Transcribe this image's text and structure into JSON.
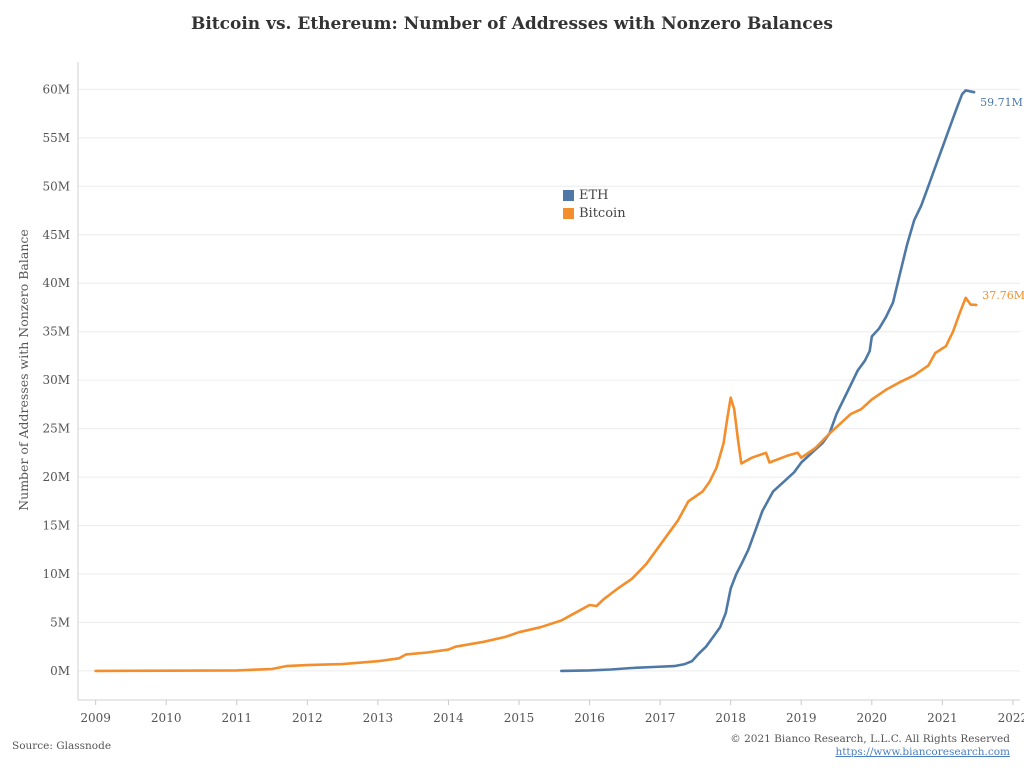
{
  "title": "Bitcoin vs. Ethereum: Number of Addresses with Nonzero Balances",
  "source": "Source: Glassnode",
  "copyright": "© 2021 Bianco Research, L.L.C. All Rights Reserved",
  "url": "https://www.biancoresearch.com",
  "colors": {
    "eth": "#4e79a7",
    "bitcoin": "#f28e2b",
    "grid": "#ececec"
  },
  "chart_data": {
    "type": "line",
    "title": "Bitcoin vs. Ethereum: Number of Addresses with Nonzero Balances",
    "xlabel": "",
    "ylabel": "Number of Addresses with Nonzero Balance",
    "xlim": [
      2008.75,
      2022.1
    ],
    "ylim": [
      -3,
      62
    ],
    "x_ticks": [
      2009,
      2010,
      2011,
      2012,
      2013,
      2014,
      2015,
      2016,
      2017,
      2018,
      2019,
      2020,
      2021,
      2022
    ],
    "x_tick_labels": [
      "2009",
      "2010",
      "2011",
      "2012",
      "2013",
      "2014",
      "2015",
      "2016",
      "2017",
      "2018",
      "2019",
      "2020",
      "2021",
      "2022"
    ],
    "y_ticks": [
      0,
      5,
      10,
      15,
      20,
      25,
      30,
      35,
      40,
      45,
      50,
      55,
      60
    ],
    "y_tick_labels": [
      "0M",
      "5M",
      "10M",
      "15M",
      "20M",
      "25M",
      "30M",
      "35M",
      "40M",
      "45M",
      "50M",
      "55M",
      "60M"
    ],
    "grid": true,
    "legend": {
      "position": "center",
      "entries": [
        "ETH",
        "Bitcoin"
      ]
    },
    "series": [
      {
        "name": "ETH",
        "end_label": "59.71M",
        "points": [
          [
            2015.6,
            0
          ],
          [
            2016.0,
            0.05
          ],
          [
            2016.3,
            0.15
          ],
          [
            2016.6,
            0.3
          ],
          [
            2016.9,
            0.4
          ],
          [
            2017.2,
            0.5
          ],
          [
            2017.35,
            0.7
          ],
          [
            2017.45,
            1.0
          ],
          [
            2017.55,
            1.8
          ],
          [
            2017.65,
            2.5
          ],
          [
            2017.75,
            3.5
          ],
          [
            2017.85,
            4.5
          ],
          [
            2017.93,
            6.0
          ],
          [
            2018.0,
            8.5
          ],
          [
            2018.08,
            10.0
          ],
          [
            2018.15,
            11.0
          ],
          [
            2018.25,
            12.5
          ],
          [
            2018.35,
            14.5
          ],
          [
            2018.45,
            16.5
          ],
          [
            2018.6,
            18.5
          ],
          [
            2018.75,
            19.5
          ],
          [
            2018.9,
            20.5
          ],
          [
            2019.0,
            21.5
          ],
          [
            2019.15,
            22.5
          ],
          [
            2019.3,
            23.5
          ],
          [
            2019.4,
            24.5
          ],
          [
            2019.5,
            26.5
          ],
          [
            2019.6,
            28.0
          ],
          [
            2019.7,
            29.5
          ],
          [
            2019.8,
            31.0
          ],
          [
            2019.9,
            32.0
          ],
          [
            2019.97,
            33.0
          ],
          [
            2020.0,
            34.5
          ],
          [
            2020.1,
            35.3
          ],
          [
            2020.2,
            36.5
          ],
          [
            2020.3,
            38.0
          ],
          [
            2020.4,
            41.0
          ],
          [
            2020.5,
            44.0
          ],
          [
            2020.6,
            46.5
          ],
          [
            2020.7,
            48.0
          ],
          [
            2020.8,
            50.0
          ],
          [
            2020.9,
            52.0
          ],
          [
            2021.0,
            54.0
          ],
          [
            2021.1,
            56.0
          ],
          [
            2021.2,
            58.0
          ],
          [
            2021.28,
            59.5
          ],
          [
            2021.33,
            59.9
          ],
          [
            2021.45,
            59.71
          ]
        ]
      },
      {
        "name": "Bitcoin",
        "end_label": "37.76M",
        "points": [
          [
            2009.0,
            0
          ],
          [
            2010.0,
            0.02
          ],
          [
            2011.0,
            0.05
          ],
          [
            2011.5,
            0.2
          ],
          [
            2011.7,
            0.5
          ],
          [
            2012.0,
            0.6
          ],
          [
            2012.5,
            0.7
          ],
          [
            2013.0,
            1.0
          ],
          [
            2013.3,
            1.3
          ],
          [
            2013.4,
            1.7
          ],
          [
            2013.7,
            1.9
          ],
          [
            2014.0,
            2.2
          ],
          [
            2014.1,
            2.5
          ],
          [
            2014.5,
            3.0
          ],
          [
            2014.8,
            3.5
          ],
          [
            2015.0,
            4.0
          ],
          [
            2015.3,
            4.5
          ],
          [
            2015.6,
            5.2
          ],
          [
            2015.75,
            5.8
          ],
          [
            2016.0,
            6.8
          ],
          [
            2016.1,
            6.7
          ],
          [
            2016.2,
            7.4
          ],
          [
            2016.4,
            8.5
          ],
          [
            2016.6,
            9.5
          ],
          [
            2016.8,
            11.0
          ],
          [
            2016.95,
            12.5
          ],
          [
            2017.1,
            14.0
          ],
          [
            2017.25,
            15.5
          ],
          [
            2017.4,
            17.5
          ],
          [
            2017.5,
            18.0
          ],
          [
            2017.6,
            18.5
          ],
          [
            2017.7,
            19.5
          ],
          [
            2017.8,
            21.0
          ],
          [
            2017.9,
            23.5
          ],
          [
            2017.95,
            26.0
          ],
          [
            2018.0,
            28.2
          ],
          [
            2018.05,
            27.0
          ],
          [
            2018.1,
            24.0
          ],
          [
            2018.15,
            21.4
          ],
          [
            2018.3,
            22.0
          ],
          [
            2018.5,
            22.5
          ],
          [
            2018.55,
            21.5
          ],
          [
            2018.8,
            22.2
          ],
          [
            2018.95,
            22.5
          ],
          [
            2019.0,
            22.0
          ],
          [
            2019.2,
            23.0
          ],
          [
            2019.4,
            24.5
          ],
          [
            2019.55,
            25.5
          ],
          [
            2019.7,
            26.5
          ],
          [
            2019.85,
            27.0
          ],
          [
            2020.0,
            28.0
          ],
          [
            2020.2,
            29.0
          ],
          [
            2020.4,
            29.8
          ],
          [
            2020.6,
            30.5
          ],
          [
            2020.8,
            31.5
          ],
          [
            2020.9,
            32.8
          ],
          [
            2021.05,
            33.5
          ],
          [
            2021.15,
            35.0
          ],
          [
            2021.25,
            37.0
          ],
          [
            2021.33,
            38.5
          ],
          [
            2021.4,
            37.8
          ],
          [
            2021.48,
            37.76
          ]
        ]
      }
    ]
  }
}
